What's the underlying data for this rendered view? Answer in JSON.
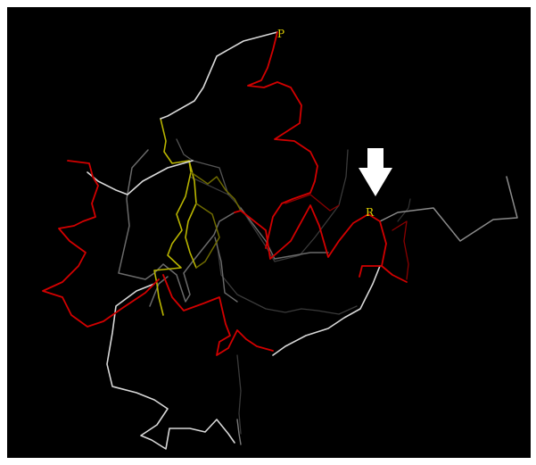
{
  "image": {
    "background_color": "#000000",
    "labels": [
      {
        "id": "P",
        "text": "P",
        "color": "#e0d000"
      },
      {
        "id": "R",
        "text": "R",
        "color": "#e0d000"
      }
    ],
    "arrow": {
      "icon": "down-arrow-icon",
      "color": "#ffffff"
    },
    "strand_colors": {
      "red": "#d20000",
      "dark_red": "#8a0000",
      "white": "#d8d8d8",
      "gray": "#6a6a6a",
      "dark_gray": "#3a3a3a",
      "yellow": "#b8b400",
      "dark_yellow": "#6e6a00"
    }
  }
}
